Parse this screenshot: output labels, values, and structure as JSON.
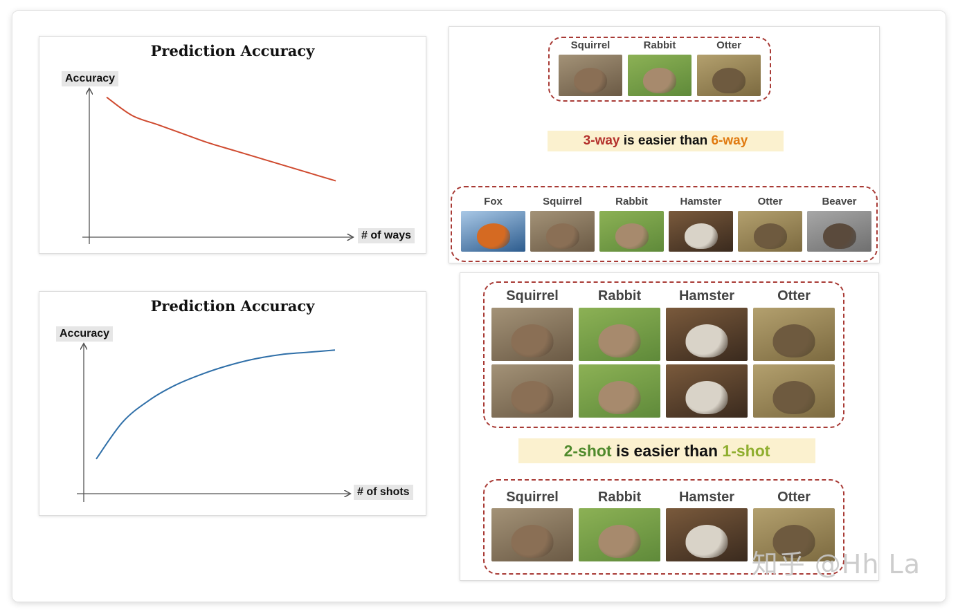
{
  "chart_data": [
    {
      "type": "line",
      "title": "Prediction Accuracy",
      "ylabel": "Accuracy",
      "xlabel": "# of ways",
      "trend": "decreasing",
      "x": [
        1,
        2,
        3,
        4,
        5,
        6,
        7,
        8,
        9,
        10
      ],
      "series": [
        {
          "values": [
            0.92,
            0.8,
            0.74,
            0.68,
            0.62,
            0.57,
            0.52,
            0.47,
            0.42,
            0.37
          ]
        }
      ],
      "grid": false,
      "color": "#cf4a2f"
    },
    {
      "type": "line",
      "title": "Prediction Accuracy",
      "ylabel": "Accuracy",
      "xlabel": "# of shots",
      "trend": "increasing",
      "x": [
        1,
        2,
        3,
        4,
        5,
        6,
        7,
        8,
        9,
        10
      ],
      "series": [
        {
          "values": [
            0.28,
            0.45,
            0.55,
            0.62,
            0.67,
            0.71,
            0.74,
            0.76,
            0.77,
            0.78
          ]
        }
      ],
      "grid": false,
      "color": "#2f6fa8"
    }
  ],
  "ways_demo": {
    "three_way": [
      "Squirrel",
      "Rabbit",
      "Otter"
    ],
    "caption": {
      "a": "3-way",
      "b": " is easier than ",
      "c": "6-way"
    },
    "six_way": [
      "Fox",
      "Squirrel",
      "Rabbit",
      "Hamster",
      "Otter",
      "Beaver"
    ]
  },
  "shots_demo": {
    "two_shot": [
      "Squirrel",
      "Rabbit",
      "Hamster",
      "Otter"
    ],
    "caption": {
      "a": "2-shot",
      "b": " is easier than ",
      "c": "1-shot"
    },
    "one_shot": [
      "Squirrel",
      "Rabbit",
      "Hamster",
      "Otter"
    ]
  },
  "watermark": "知乎 @Hh La",
  "colors": {
    "dash_border": "#a83a35",
    "caption_bg": "#fbf1cf",
    "ways_line": "#cf4a2f",
    "shots_line": "#2f6fa8"
  }
}
